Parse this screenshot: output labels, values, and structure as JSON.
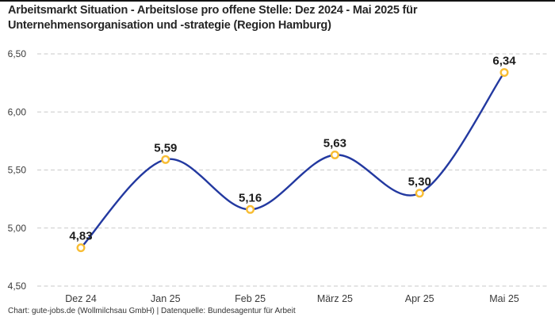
{
  "header": {
    "title_line1": "Arbeitsmarkt Situation - Arbeitslose pro offene Stelle: Dez 2024 - Mai 2025 für",
    "title_line2": "Unternehmensorganisation und -strategie (Region Hamburg)"
  },
  "footer": {
    "credit": "Chart: gute-jobs.de (Wollmilchsau GmbH) | Datenquelle: Bundesagentur für Arbeit"
  },
  "colors": {
    "line": "#2339A0",
    "marker_ring": "#F8BD33",
    "marker_fill": "#FFFFFF",
    "grid": "#C9C9C9",
    "axis_text": "#3A3A3A",
    "value_label": "#1C1C1C",
    "title_text": "#262626",
    "top_border": "#141414"
  },
  "chart_data": {
    "type": "line",
    "title": "Arbeitsmarkt Situation - Arbeitslose pro offene Stelle: Dez 2024 - Mai 2025 für Unternehmensorganisation und -strategie (Region Hamburg)",
    "categories": [
      "Dez 24",
      "Jan 25",
      "Feb 25",
      "März 25",
      "Apr 25",
      "Mai 25"
    ],
    "values": [
      4.83,
      5.59,
      5.16,
      5.63,
      5.3,
      6.34
    ],
    "value_labels": [
      "4,83",
      "5,59",
      "5,16",
      "5,63",
      "5,30",
      "6,34"
    ],
    "series_name": "Arbeitslose pro offene Stelle",
    "ylim": [
      4.5,
      6.5
    ],
    "yticks": [
      4.5,
      5.0,
      5.5,
      6.0,
      6.5
    ],
    "ytick_labels": [
      "4,50",
      "5,00",
      "5,50",
      "6,00",
      "6,50"
    ],
    "xlabel": "",
    "ylabel": "",
    "grid": "horizontal-dashed",
    "legend": "none",
    "line_style": "smooth",
    "marker": "open-circle",
    "source": "Bundesagentur für Arbeit"
  }
}
